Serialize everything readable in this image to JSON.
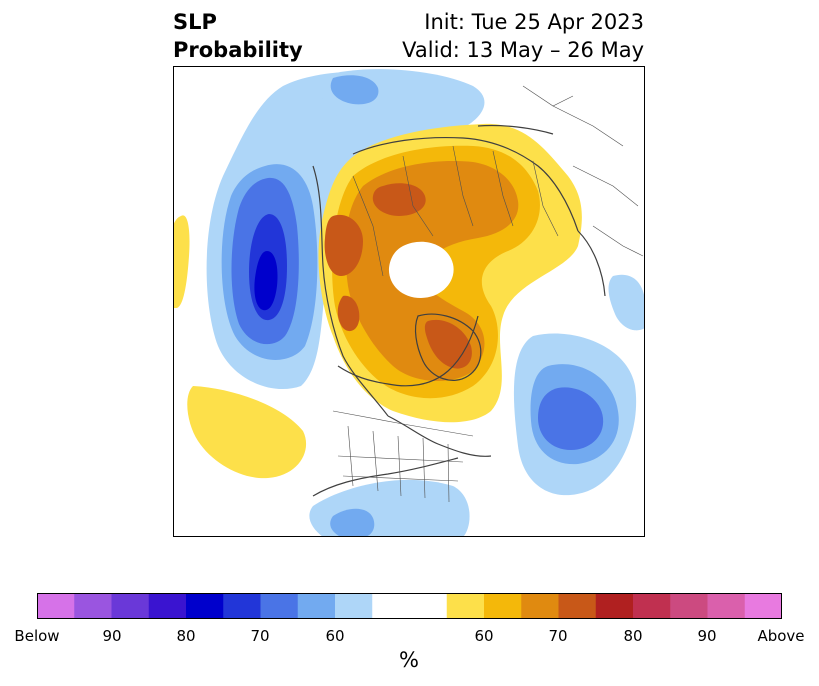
{
  "title": {
    "left_line1": "SLP",
    "left_line2": "Probability",
    "right_line1": "Init: Tue 25 Apr 2023",
    "right_line2": "Valid: 13 May – 26 May"
  },
  "colorbar": {
    "label": "%",
    "colors": [
      "#d672e8",
      "#9a55e0",
      "#6a38d8",
      "#3a14d0",
      "#0000cc",
      "#2236d8",
      "#4a74e6",
      "#72aaf0",
      "#aed6f8",
      "#ffffff",
      "#ffffff",
      "#fde04a",
      "#f4b80a",
      "#e08a10",
      "#c85818",
      "#b02020",
      "#c03050",
      "#cc4a80",
      "#da60ac",
      "#e87ae0"
    ],
    "ticks": [
      "Below",
      "90",
      "80",
      "70",
      "60",
      "60",
      "70",
      "80",
      "90",
      "Above"
    ]
  },
  "map": {
    "projection": "north-polar-stereographic",
    "colors": {
      "below_60": "#aed6f8",
      "below_65": "#72aaf0",
      "below_70": "#4a74e6",
      "below_75": "#2236d8",
      "below_80": "#0000cc",
      "above_60": "#fde04a",
      "above_65": "#f4b80a",
      "above_70": "#e08a10",
      "above_75": "#c85818",
      "coast": "#404040"
    }
  }
}
